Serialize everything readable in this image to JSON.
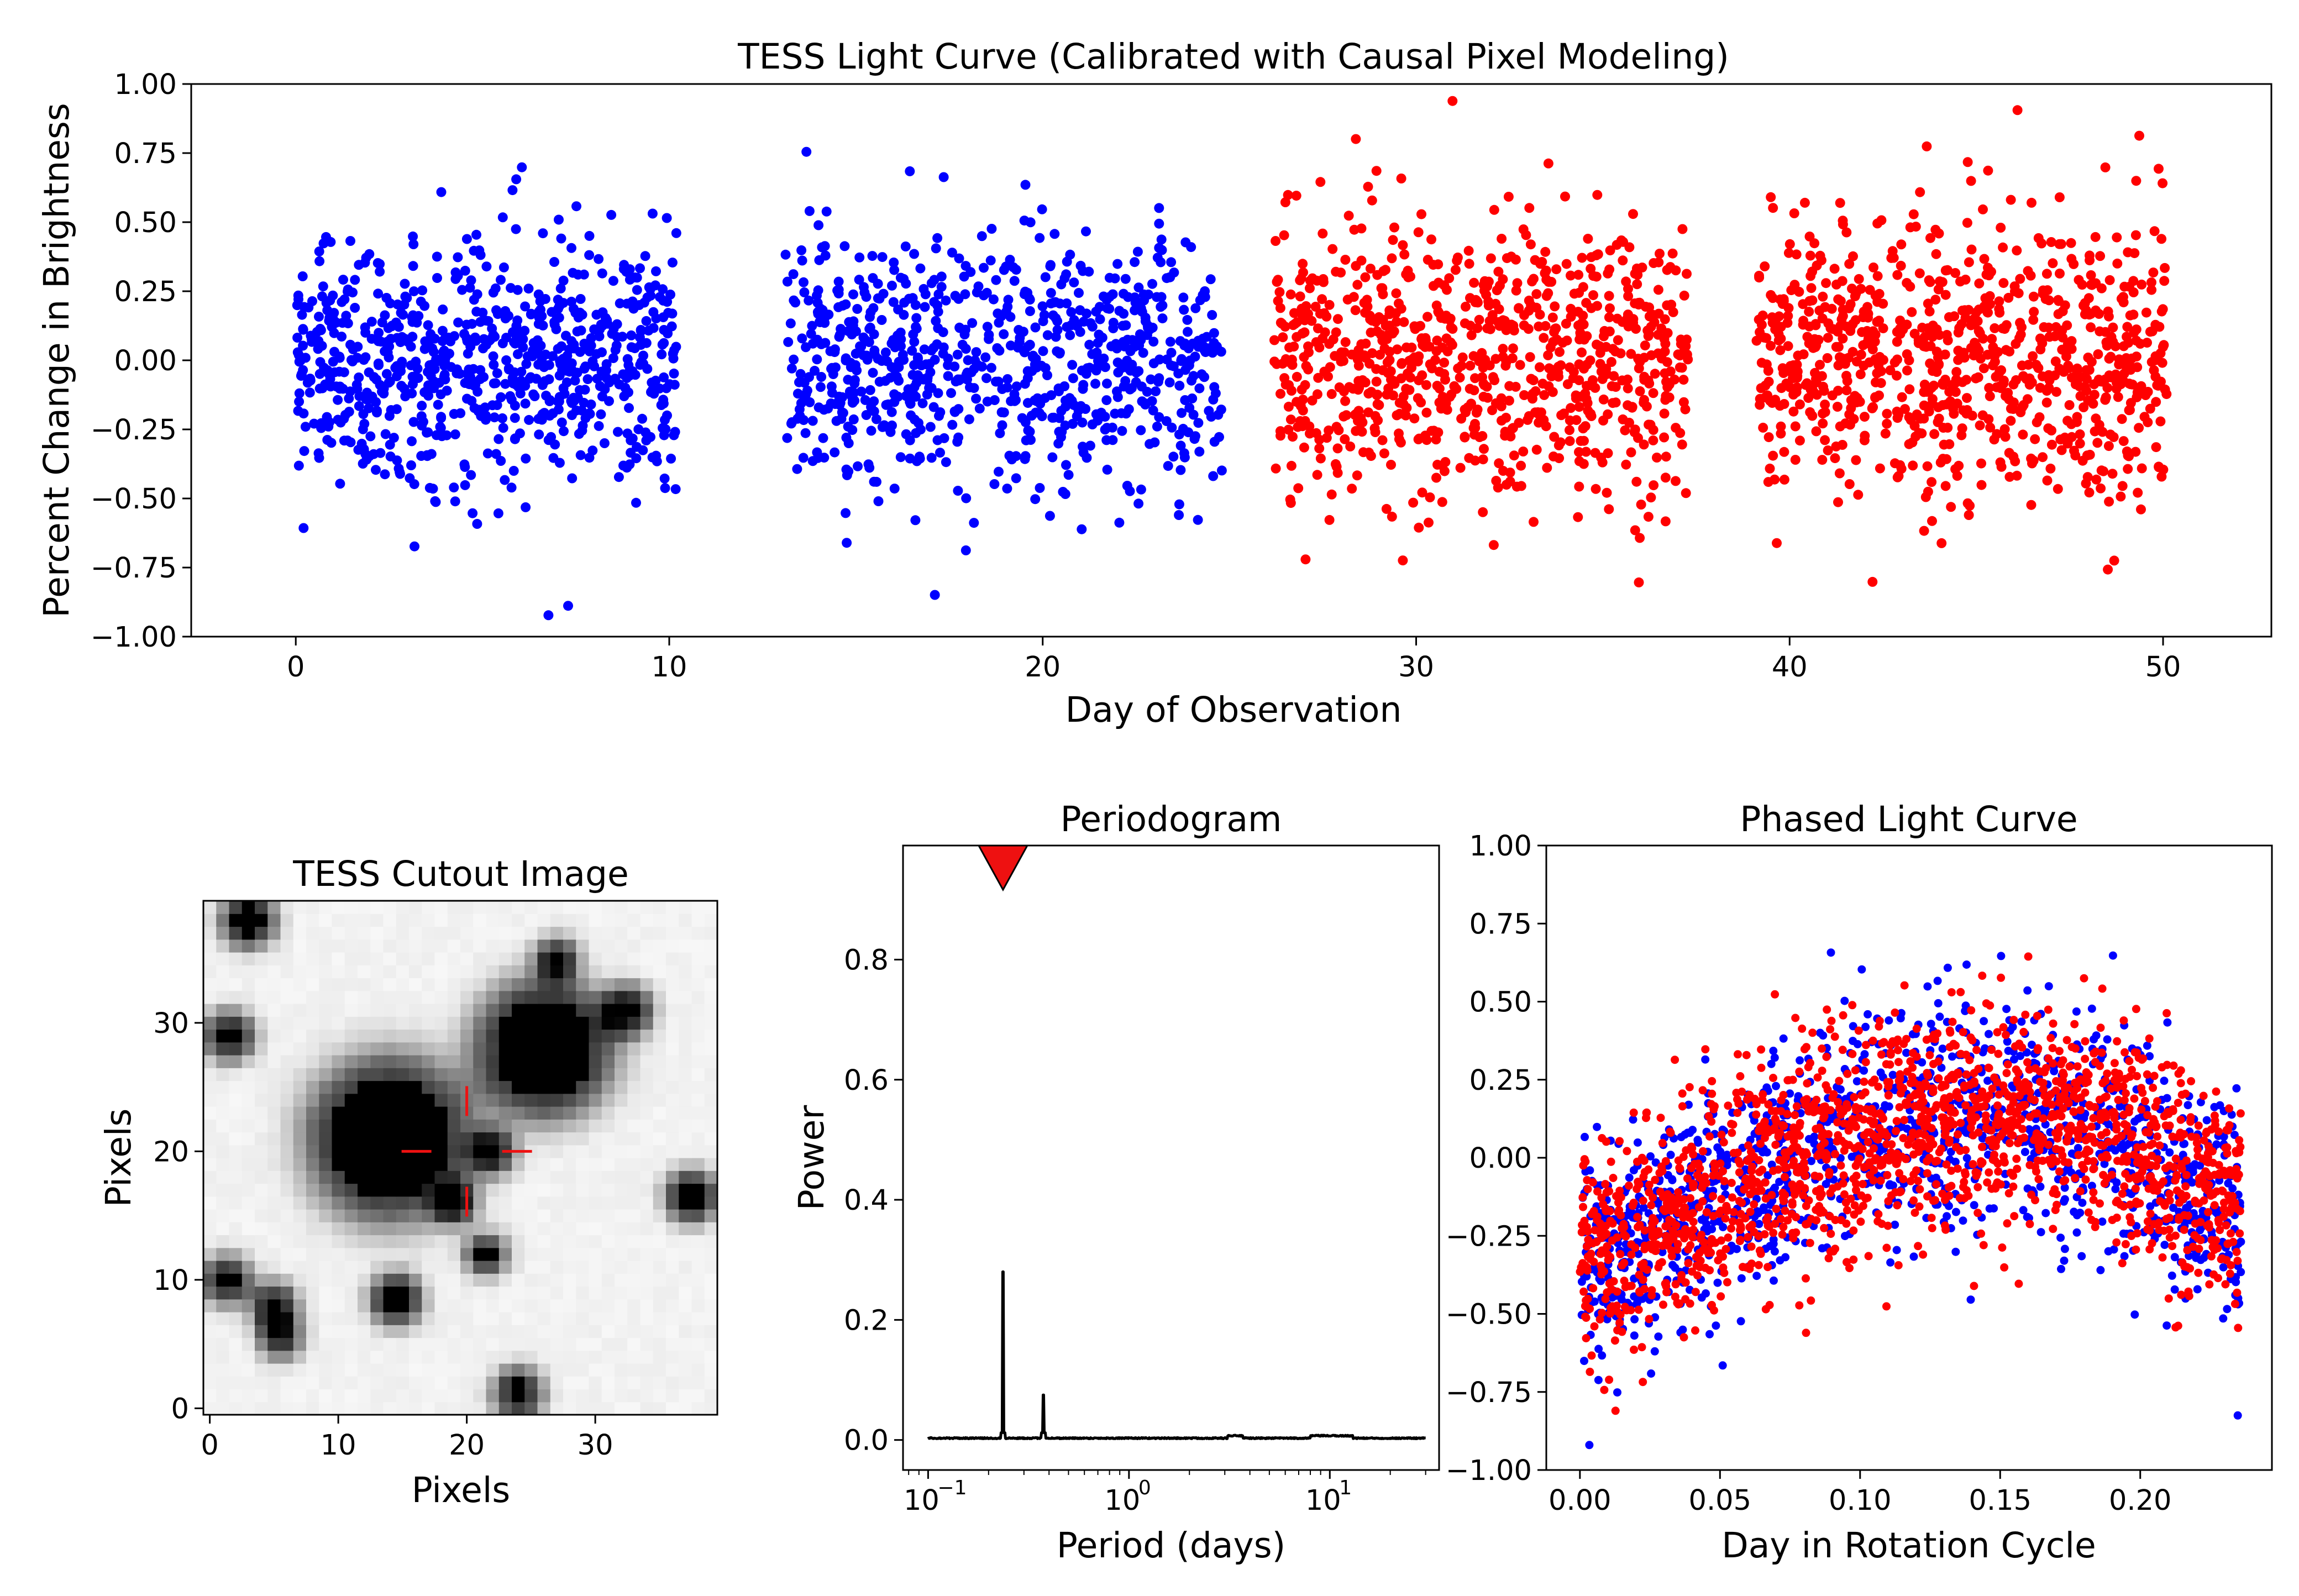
{
  "colors": {
    "first_half": "#0000ff",
    "second_half": "#ff0000",
    "marker": "#ee1111",
    "line": "#000000"
  },
  "light_curve": {
    "title": "TESS Light Curve (Calibrated with Causal Pixel Modeling)",
    "xlabel": "Day of Observation",
    "ylabel": "Percent Change in Brightness",
    "xticks": [
      "0",
      "10",
      "20",
      "30",
      "40",
      "50"
    ],
    "yticks": [
      "−1.00",
      "−0.75",
      "−0.50",
      "−0.25",
      "0.00",
      "0.25",
      "0.50",
      "0.75",
      "1.00"
    ]
  },
  "cutout": {
    "title": "TESS Cutout Image",
    "xlabel": "Pixels",
    "ylabel": "Pixels",
    "xticks": [
      "0",
      "10",
      "20",
      "30"
    ],
    "yticks": [
      "0",
      "10",
      "20",
      "30"
    ]
  },
  "periodogram": {
    "title": "Periodogram",
    "xlabel": "Period (days)",
    "ylabel": "Power",
    "xticks": [
      "10",
      "10",
      "10"
    ],
    "xtick_exponents": [
      "−1",
      "0",
      "1"
    ],
    "yticks": [
      "0.0",
      "0.2",
      "0.4",
      "0.6",
      "0.8"
    ]
  },
  "phased": {
    "title": "Phased Light Curve",
    "xlabel": "Day in Rotation Cycle",
    "xticks": [
      "0.00",
      "0.05",
      "0.10",
      "0.15",
      "0.20"
    ],
    "yticks": [
      "−1.00",
      "−0.75",
      "−0.50",
      "−0.25",
      "0.00",
      "0.25",
      "0.50",
      "0.75",
      "1.00"
    ]
  },
  "chart_data": [
    {
      "type": "scatter",
      "title": "TESS Light Curve (Calibrated with Causal Pixel Modeling)",
      "xlabel": "Day of Observation",
      "ylabel": "Percent Change in Brightness",
      "xlim": [
        -2.8,
        52.9
      ],
      "ylim": [
        -1.0,
        1.0
      ],
      "series": [
        {
          "color": "#0000ff",
          "segments": [
            [
              0.0,
              10.2
            ],
            [
              13.1,
              24.8
            ]
          ],
          "scatter_sd": 0.22,
          "n_per_segment": 800
        },
        {
          "color": "#ff0000",
          "segments": [
            [
              26.2,
              37.3
            ],
            [
              39.1,
              50.1
            ]
          ],
          "scatter_sd": 0.25,
          "n_per_segment": 850
        }
      ],
      "grid": false
    },
    {
      "type": "heatmap",
      "title": "TESS Cutout Image",
      "xlabel": "Pixels",
      "ylabel": "Pixels",
      "xlim": [
        -0.5,
        39.5
      ],
      "ylim": [
        -0.5,
        39.5
      ],
      "colormap": "gray_r",
      "sources": [
        {
          "x": 14,
          "y": 21,
          "r": 4.5
        },
        {
          "x": 26,
          "y": 28,
          "r": 3.8
        },
        {
          "x": 3,
          "y": 38,
          "r": 1.2
        },
        {
          "x": 1.5,
          "y": 29,
          "r": 1.0
        },
        {
          "x": 32.5,
          "y": 31,
          "r": 1.0
        },
        {
          "x": 14.5,
          "y": 8.5,
          "r": 1.1
        },
        {
          "x": 24,
          "y": 1.2,
          "r": 1.0
        },
        {
          "x": 37.5,
          "y": 16.5,
          "r": 1.1
        },
        {
          "x": 1.3,
          "y": 10,
          "r": 0.9
        },
        {
          "x": 5,
          "y": 8,
          "r": 0.8
        },
        {
          "x": 22,
          "y": 20,
          "r": 0.7
        },
        {
          "x": 21.5,
          "y": 12,
          "r": 0.6
        },
        {
          "x": 5.5,
          "y": 5.5,
          "r": 0.6
        },
        {
          "x": 27,
          "y": 35,
          "r": 0.6
        },
        {
          "x": 19,
          "y": 16,
          "r": 0.6
        }
      ],
      "target": {
        "x": 20,
        "y": 20
      }
    },
    {
      "type": "line",
      "title": "Periodogram",
      "xlabel": "Period (days)",
      "ylabel": "Power",
      "xscale": "log",
      "xlim": [
        0.075,
        35
      ],
      "ylim": [
        -0.05,
        0.99
      ],
      "peaks": [
        {
          "period": 0.236,
          "power": 0.28
        },
        {
          "period": 0.375,
          "power": 0.075
        }
      ],
      "marker": {
        "period": 0.236,
        "power": 0.955,
        "shape": "triangle-down",
        "color": "#ee1111"
      }
    },
    {
      "type": "scatter",
      "title": "Phased Light Curve",
      "xlabel": "Day in Rotation Cycle",
      "xlim": [
        -0.012,
        0.247
      ],
      "ylim": [
        -1.0,
        1.0
      ],
      "period": 0.236,
      "curve": {
        "min_at_phase": 0.01,
        "min_value": -0.32,
        "max_at_phase": 0.15,
        "max_value": 0.15,
        "end_value": -0.2
      },
      "series": [
        {
          "color": "#0000ff",
          "n": 1300,
          "scatter_sd": 0.18
        },
        {
          "color": "#ff0000",
          "n": 1700,
          "scatter_sd": 0.18
        }
      ]
    }
  ]
}
